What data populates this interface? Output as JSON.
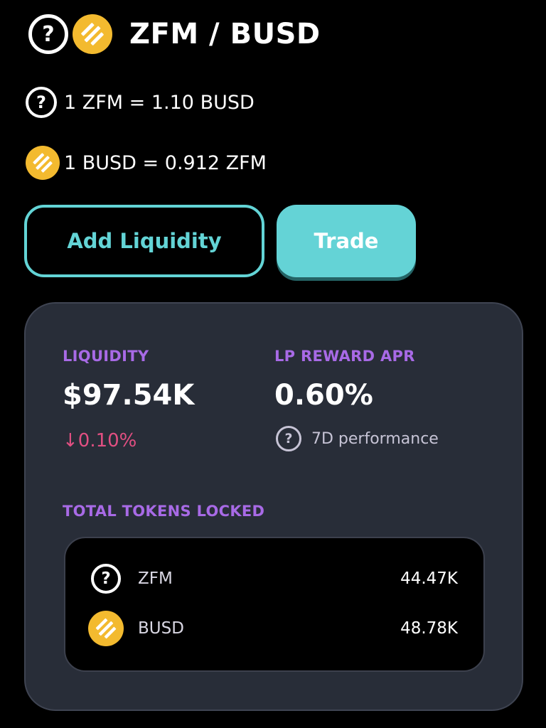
{
  "colors": {
    "background": "#000000",
    "accent_teal": "#64d3d6",
    "label_purple": "#a86ae6",
    "negative_pink": "#e24f82",
    "card_bg": "#282d38",
    "busd_yellow": "#f3ba2f"
  },
  "icons": {
    "unknown_token": "question-circle-icon",
    "busd": "busd-coin-icon"
  },
  "header": {
    "unknown_glyph": "?",
    "pair_title": "ZFM / BUSD"
  },
  "rates": {
    "zfm_to_busd": "1 ZFM = 1.10 BUSD",
    "busd_to_zfm": "1 BUSD = 0.912 ZFM"
  },
  "actions": {
    "add_liquidity": "Add Liquidity",
    "trade": "Trade"
  },
  "stats": {
    "liquidity_label": "LIQUIDITY",
    "liquidity_value": "$97.54K",
    "liquidity_change": "↓0.10%",
    "apr_label": "LP REWARD APR",
    "apr_value": "0.60%",
    "apr_caption": "7D performance",
    "locked_label": "TOTAL TOKENS LOCKED"
  },
  "tokens_locked": [
    {
      "symbol": "ZFM",
      "amount": "44.47K"
    },
    {
      "symbol": "BUSD",
      "amount": "48.78K"
    }
  ]
}
